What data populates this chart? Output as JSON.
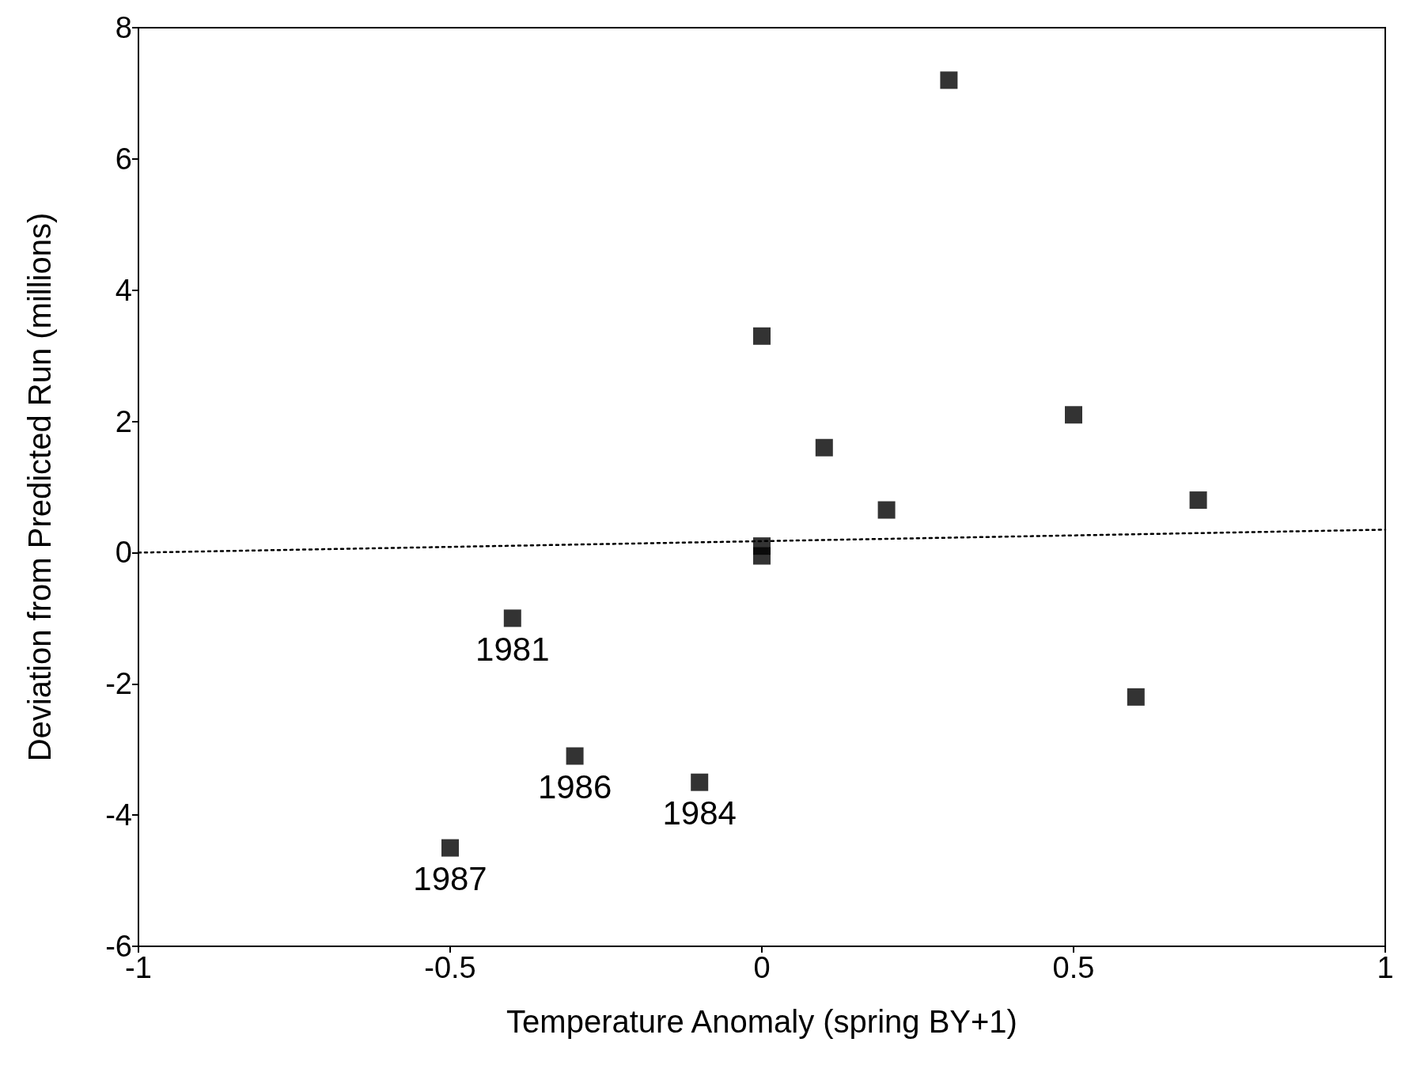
{
  "chart_data": {
    "type": "scatter",
    "xlabel": "Temperature Anomaly (spring BY+1)",
    "ylabel": "Deviation from Predicted Run (millions)",
    "series": [
      {
        "color": "#000000",
        "marker": "square",
        "x": [
          0.3,
          0,
          0.5,
          0.1,
          0.7,
          0.2,
          0,
          0,
          -0.4,
          0.6,
          -0.3,
          -0.1,
          -0.5
        ],
        "values": [
          7.2,
          3.3,
          2.1,
          1.6,
          0.8,
          0.65,
          0.1,
          -0.05,
          -1.0,
          -2.2,
          -3.1,
          -3.5,
          -4.5
        ]
      },
      {
        "type": "line",
        "color": "#000000",
        "marker": "none",
        "line_style": "dotted",
        "x": [
          -1,
          1
        ],
        "values": [
          0,
          0.35
        ]
      }
    ],
    "annotations": [
      {
        "text": "1981",
        "x": -0.4,
        "y": -1.0
      },
      {
        "text": "1986",
        "x": -0.3,
        "y": -3.1
      },
      {
        "text": "1984",
        "x": -0.1,
        "y": -3.5
      },
      {
        "text": "1987",
        "x": -0.5,
        "y": -4.5
      }
    ],
    "xlim": [
      -1,
      1
    ],
    "xticks": [
      -1,
      -0.5,
      0,
      0.5,
      1
    ],
    "ylim": [
      -6,
      8
    ],
    "yticks": [
      -6,
      -4,
      -2,
      0,
      2,
      4,
      6,
      8
    ],
    "grid": false
  }
}
